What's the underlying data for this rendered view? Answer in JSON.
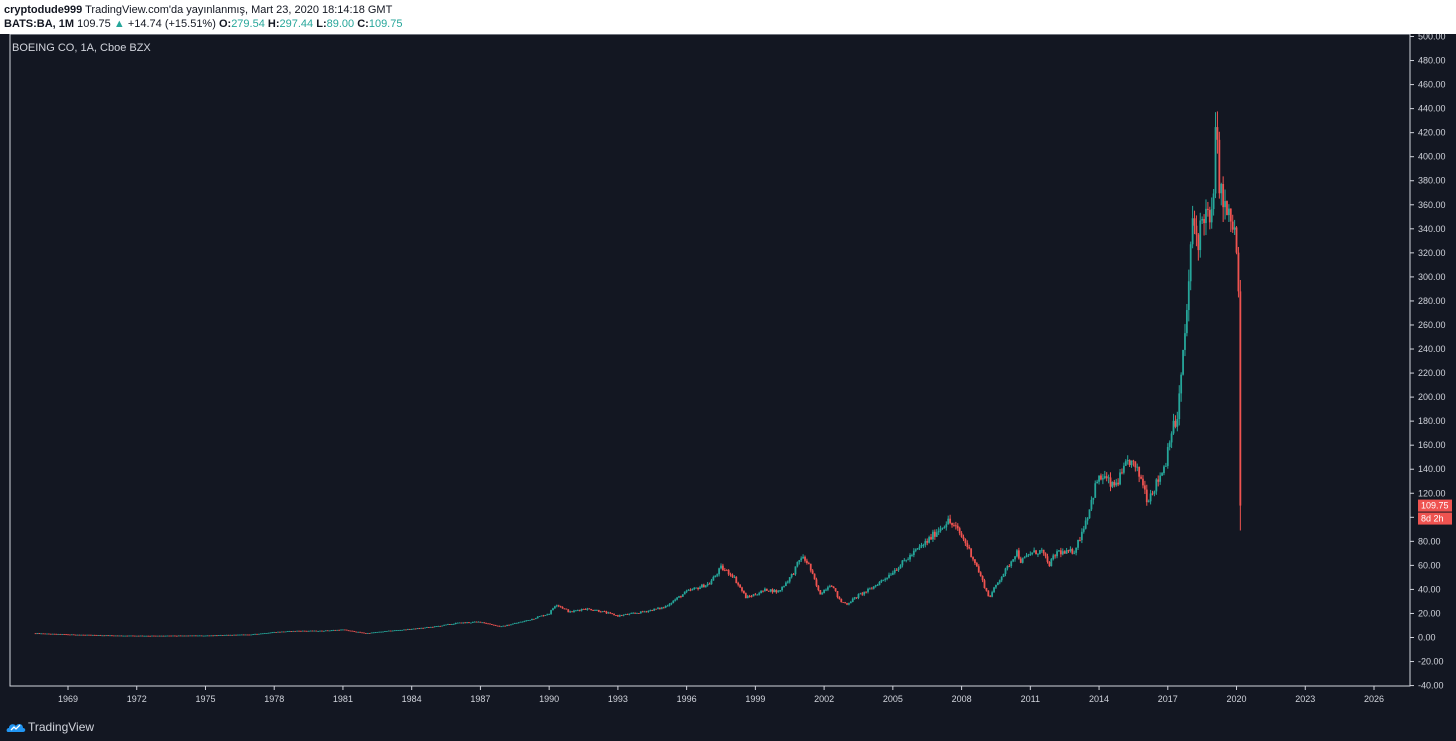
{
  "header": {
    "author": "cryptodude999",
    "published_text": "TradingView.com'da yayınlanmış, Mart 23, 2020 18:14:18 GMT",
    "symbol_interval": "BATS:BA, 1M",
    "last": "109.75",
    "change": "+14.74 (+15.51%)",
    "open_label": "O:",
    "open_value": "279.54",
    "high_label": "H:",
    "high_value": "297.44",
    "low_label": "L:",
    "low_value": "89.00",
    "close_label": "C:",
    "close_value": "109.75"
  },
  "chart_title": "BOEING CO, 1A, Cboe BZX",
  "price_label": {
    "value": "109.75",
    "countdown": "8d 2h"
  },
  "footer": {
    "brand": "TradingView"
  },
  "colors": {
    "background": "#131722",
    "up": "#26a69a",
    "down": "#ef5350",
    "text": "#d1d4dc"
  },
  "chart_data": {
    "type": "candlestick",
    "title": "BOEING CO, 1A, Cboe BZX",
    "x_ticks": [
      "1969",
      "1972",
      "1975",
      "1978",
      "1981",
      "1984",
      "1987",
      "1990",
      "1993",
      "1996",
      "1999",
      "2002",
      "2005",
      "2008",
      "2011",
      "2014",
      "2017",
      "2020",
      "2023",
      "2026"
    ],
    "y_ticks": [
      -40,
      -20,
      0,
      20,
      40,
      60,
      80,
      100,
      120,
      140,
      160,
      180,
      200,
      220,
      240,
      260,
      280,
      300,
      320,
      340,
      360,
      380,
      400,
      420,
      440,
      460,
      480,
      500
    ],
    "y_tick_labels": [
      "-40.00",
      "-20.00",
      "0.00",
      "20.00",
      "40.00",
      "60.00",
      "80.00",
      "100.00",
      "120.00",
      "140.00",
      "160.00",
      "180.00",
      "200.00",
      "220.00",
      "240.00",
      "260.00",
      "280.00",
      "300.00",
      "320.00",
      "340.00",
      "360.00",
      "380.00",
      "400.00",
      "420.00",
      "440.00",
      "460.00",
      "480.00",
      "500.00"
    ],
    "ylim": [
      -40,
      500
    ],
    "xlim": [
      1967.3,
      2028.3
    ],
    "price_path": [
      [
        1967.5,
        3.5
      ],
      [
        1969,
        2.5
      ],
      [
        1971,
        1.6
      ],
      [
        1973,
        1.4
      ],
      [
        1975,
        1.6
      ],
      [
        1977,
        2.5
      ],
      [
        1978,
        4.5
      ],
      [
        1979,
        5.5
      ],
      [
        1980,
        5.5
      ],
      [
        1981,
        6.5
      ],
      [
        1982,
        3.5
      ],
      [
        1983,
        5.5
      ],
      [
        1984,
        7
      ],
      [
        1985,
        9
      ],
      [
        1986,
        12
      ],
      [
        1987,
        13
      ],
      [
        1987.9,
        9
      ],
      [
        1989,
        14
      ],
      [
        1990,
        20
      ],
      [
        1990.3,
        28
      ],
      [
        1990.9,
        21
      ],
      [
        1991.5,
        24
      ],
      [
        1992,
        23
      ],
      [
        1993,
        18
      ],
      [
        1994,
        21
      ],
      [
        1995,
        25
      ],
      [
        1996,
        38
      ],
      [
        1997,
        45
      ],
      [
        1997.5,
        58
      ],
      [
        1998,
        52
      ],
      [
        1998.6,
        33
      ],
      [
        1999,
        36
      ],
      [
        1999.5,
        40
      ],
      [
        2000,
        38
      ],
      [
        2000.6,
        52
      ],
      [
        2001,
        67
      ],
      [
        2001.3,
        62
      ],
      [
        2001.8,
        36
      ],
      [
        2002.3,
        45
      ],
      [
        2002.7,
        30
      ],
      [
        2003,
        28
      ],
      [
        2003.5,
        35
      ],
      [
        2004,
        40
      ],
      [
        2004.7,
        50
      ],
      [
        2005,
        55
      ],
      [
        2005.6,
        65
      ],
      [
        2006,
        72
      ],
      [
        2006.5,
        80
      ],
      [
        2007,
        90
      ],
      [
        2007.4,
        97
      ],
      [
        2007.8,
        90
      ],
      [
        2008.2,
        78
      ],
      [
        2008.6,
        62
      ],
      [
        2009.2,
        33
      ],
      [
        2009.7,
        50
      ],
      [
        2010,
        58
      ],
      [
        2010.4,
        72
      ],
      [
        2010.6,
        63
      ],
      [
        2011,
        70
      ],
      [
        2011.5,
        72
      ],
      [
        2011.8,
        60
      ],
      [
        2012.2,
        72
      ],
      [
        2012.5,
        70
      ],
      [
        2012.9,
        72
      ],
      [
        2013.1,
        80
      ],
      [
        2013.5,
        102
      ],
      [
        2013.9,
        130
      ],
      [
        2014.2,
        134
      ],
      [
        2014.6,
        125
      ],
      [
        2015,
        135
      ],
      [
        2015.3,
        148
      ],
      [
        2015.6,
        140
      ],
      [
        2015.9,
        130
      ],
      [
        2016.1,
        115
      ],
      [
        2016.5,
        128
      ],
      [
        2016.9,
        145
      ],
      [
        2017.1,
        170
      ],
      [
        2017.4,
        180
      ],
      [
        2017.7,
        240
      ],
      [
        2017.9,
        290
      ],
      [
        2018.1,
        350
      ],
      [
        2018.3,
        330
      ],
      [
        2018.6,
        355
      ],
      [
        2018.9,
        340
      ],
      [
        2019.1,
        420
      ],
      [
        2019.3,
        370
      ],
      [
        2019.6,
        350
      ],
      [
        2019.9,
        340
      ],
      [
        2020.0,
        320
      ],
      [
        2020.08,
        290
      ],
      [
        2020.17,
        109.75
      ]
    ]
  }
}
